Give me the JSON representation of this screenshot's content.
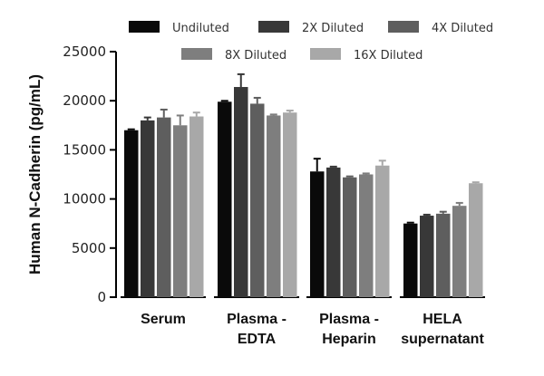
{
  "chart_data": {
    "type": "bar",
    "ylabel": "Human N-Cadherin (pg/mL)",
    "xlabel": "",
    "title": "",
    "ylim": [
      0,
      25000
    ],
    "yticks": [
      0,
      5000,
      10000,
      15000,
      20000,
      25000
    ],
    "categories": [
      [
        "Serum"
      ],
      [
        "Plasma -",
        "EDTA"
      ],
      [
        "Plasma -",
        "Heparin"
      ],
      [
        "HELA",
        "supernatant"
      ]
    ],
    "legend_position": "top",
    "series": [
      {
        "name": "Undiluted",
        "color": "#0a0a0a",
        "values": [
          17000,
          19900,
          12800,
          7500
        ],
        "errors": [
          0,
          0,
          1300,
          0
        ]
      },
      {
        "name": "2X Diluted",
        "color": "#383838",
        "values": [
          18000,
          21400,
          13200,
          8300
        ],
        "errors": [
          300,
          1300,
          0,
          100
        ]
      },
      {
        "name": "4X Diluted",
        "color": "#5e5e5e",
        "values": [
          18300,
          19700,
          12200,
          8500
        ],
        "errors": [
          800,
          600,
          100,
          200
        ]
      },
      {
        "name": "8X Diluted",
        "color": "#7e7e7e",
        "values": [
          17500,
          18500,
          12500,
          9300
        ],
        "errors": [
          1000,
          100,
          100,
          300
        ]
      },
      {
        "name": "16X Diluted",
        "color": "#a8a8a8",
        "values": [
          18400,
          18800,
          13400,
          11600
        ],
        "errors": [
          400,
          200,
          500,
          100
        ]
      }
    ]
  }
}
